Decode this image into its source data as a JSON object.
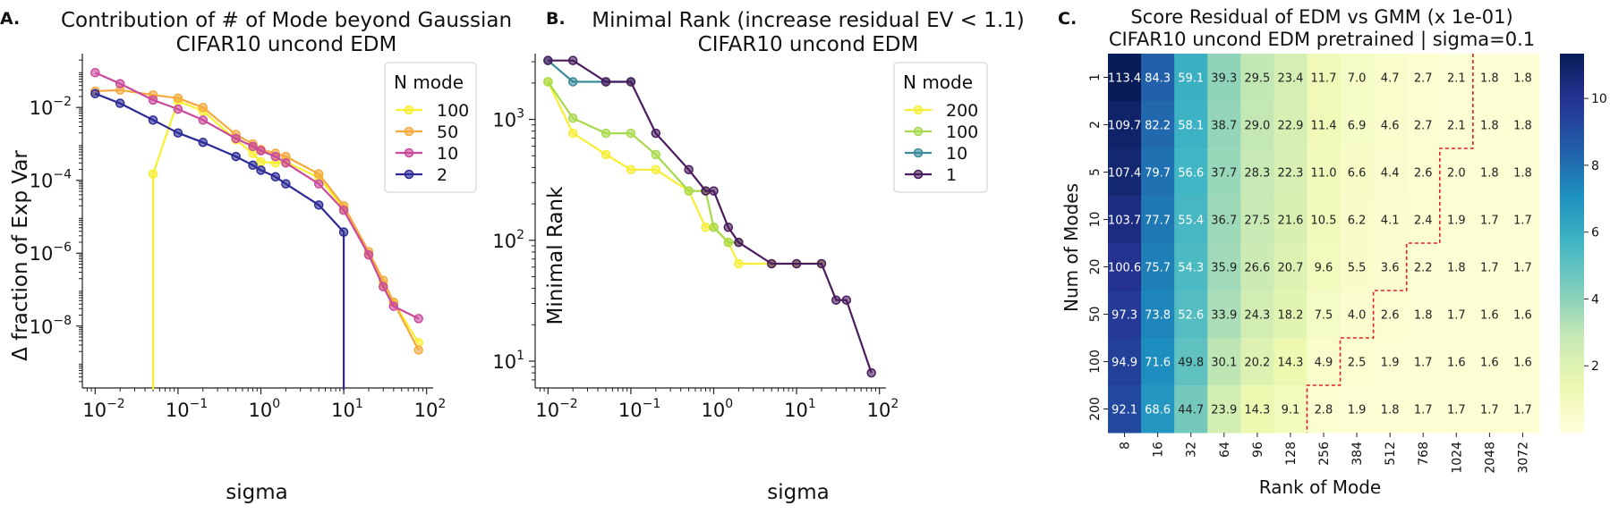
{
  "chart_data": [
    {
      "panel_label": "A.",
      "type": "line",
      "title_lines": [
        "Contribution of # of Mode beyond Gaussian",
        "CIFAR10 uncond EDM"
      ],
      "xlabel": "sigma",
      "ylabel": "Δ fraction of Exp Var",
      "xscale": "log",
      "yscale": "log",
      "xlim": [
        0.007,
        120
      ],
      "ylim": [
        2e-10,
        0.3
      ],
      "xticks": [
        {
          "v": 0.01,
          "base": "10",
          "exp": "−2"
        },
        {
          "v": 0.1,
          "base": "10",
          "exp": "−1"
        },
        {
          "v": 1,
          "base": "10",
          "exp": "0"
        },
        {
          "v": 10,
          "base": "10",
          "exp": "1"
        },
        {
          "v": 100,
          "base": "10",
          "exp": "2"
        }
      ],
      "yticks": [
        {
          "v": 0.01,
          "base": "10",
          "exp": "−2"
        },
        {
          "v": 0.0001,
          "base": "10",
          "exp": "−4"
        },
        {
          "v": 1e-06,
          "base": "10",
          "exp": "−6"
        },
        {
          "v": 1e-08,
          "base": "10",
          "exp": "−8"
        }
      ],
      "legend_title": "N mode",
      "legend_position": "top-right",
      "series": [
        {
          "name": "100",
          "color": "#f7ef2f",
          "x": [
            0.05,
            0.05,
            0.1,
            0.2,
            0.5,
            0.8,
            1,
            1.5,
            2,
            5,
            10,
            20,
            30,
            40,
            80
          ],
          "y": [
            null,
            0.00015,
            0.015,
            0.008,
            0.0013,
            0.00055,
            0.00032,
            0.0003,
            0.00032,
            0.00012,
            1.7e-05,
            9e-07,
            1.4e-07,
            4.5e-08,
            3.5e-09
          ]
        },
        {
          "name": "50",
          "color": "#f5a83c",
          "x": [
            0.01,
            0.02,
            0.05,
            0.1,
            0.2,
            0.5,
            0.8,
            1,
            1.5,
            2,
            5,
            10,
            20,
            30,
            40,
            80
          ],
          "y": [
            0.028,
            0.03,
            0.022,
            0.018,
            0.01,
            0.0018,
            0.001,
            0.0007,
            0.00055,
            0.00045,
            0.00015,
            2e-05,
            1.1e-06,
            1.8e-07,
            4.5e-08,
            2.2e-09
          ]
        },
        {
          "name": "10",
          "color": "#c94a9d",
          "x": [
            0.01,
            0.02,
            0.05,
            0.1,
            0.2,
            0.5,
            0.8,
            1,
            1.5,
            2,
            5,
            10,
            20,
            30,
            40,
            80
          ],
          "y": [
            0.09,
            0.045,
            0.016,
            0.009,
            0.0045,
            0.0014,
            0.00085,
            0.00065,
            0.00045,
            0.0003,
            8e-05,
            1.5e-05,
            9e-07,
            1.2e-07,
            3.5e-08,
            1.6e-08
          ]
        },
        {
          "name": "2",
          "color": "#2b2a96",
          "x": [
            0.01,
            0.02,
            0.05,
            0.1,
            0.2,
            0.5,
            0.8,
            1,
            1.5,
            2,
            5,
            10,
            10
          ],
          "y": [
            0.024,
            0.013,
            0.0045,
            0.002,
            0.0011,
            0.00045,
            0.00026,
            0.00019,
            0.000125,
            8e-05,
            2.1e-05,
            3.8e-06,
            null
          ]
        }
      ]
    },
    {
      "panel_label": "B.",
      "type": "line",
      "title_lines": [
        "Minimal Rank (increase residual EV < 1.1)",
        "CIFAR10 uncond EDM"
      ],
      "xlabel": "sigma",
      "ylabel": "Minimal Rank",
      "xscale": "log",
      "yscale": "log",
      "xlim": [
        0.007,
        120
      ],
      "ylim": [
        6,
        3500
      ],
      "xticks": [
        {
          "v": 0.01,
          "base": "10",
          "exp": "−2"
        },
        {
          "v": 0.1,
          "base": "10",
          "exp": "−1"
        },
        {
          "v": 1,
          "base": "10",
          "exp": "0"
        },
        {
          "v": 10,
          "base": "10",
          "exp": "1"
        },
        {
          "v": 100,
          "base": "10",
          "exp": "2"
        }
      ],
      "yticks": [
        {
          "v": 10,
          "base": "10",
          "exp": "1"
        },
        {
          "v": 100,
          "base": "10",
          "exp": "2"
        },
        {
          "v": 1000,
          "base": "10",
          "exp": "3"
        }
      ],
      "legend_title": "N mode",
      "legend_position": "top-right",
      "series": [
        {
          "name": "200",
          "color": "#f7ee35",
          "x": [
            0.01,
            0.02,
            0.05,
            0.1,
            0.2,
            0.5,
            0.8,
            1,
            1.5,
            2,
            5,
            10,
            20
          ],
          "y": [
            2048,
            768,
            512,
            384,
            384,
            256,
            128,
            128,
            96,
            64,
            64,
            64,
            64
          ]
        },
        {
          "name": "100",
          "color": "#a6d94b",
          "x": [
            0.01,
            0.02,
            0.05,
            0.1,
            0.2,
            0.5,
            0.8,
            1,
            1.5,
            2
          ],
          "y": [
            2048,
            1024,
            768,
            768,
            512,
            256,
            256,
            128,
            96,
            96
          ]
        },
        {
          "name": "10",
          "color": "#3a8a9a",
          "x": [
            0.01,
            0.02,
            0.05,
            0.1
          ],
          "y": [
            3072,
            2048,
            2048,
            2048
          ]
        },
        {
          "name": "1",
          "color": "#4a1c5e",
          "x": [
            0.01,
            0.02,
            0.05,
            0.1,
            0.2,
            0.5,
            0.8,
            1,
            1.5,
            2,
            5,
            10,
            20,
            30,
            40,
            80
          ],
          "y": [
            3072,
            3072,
            2048,
            2048,
            768,
            384,
            256,
            256,
            128,
            96,
            64,
            64,
            64,
            32,
            32,
            8
          ]
        }
      ]
    },
    {
      "panel_label": "C.",
      "type": "heatmap",
      "title_lines": [
        "Score Residual of EDM vs GMM (x 1e-01)",
        "CIFAR10 uncond EDM pretrained | sigma=0.1"
      ],
      "xlabel": "Rank of Mode",
      "ylabel": "Num of Modes",
      "columns": [
        "8",
        "16",
        "32",
        "64",
        "96",
        "128",
        "256",
        "384",
        "512",
        "768",
        "1024",
        "2048",
        "3072"
      ],
      "rows": [
        "1",
        "2",
        "5",
        "10",
        "20",
        "50",
        "100",
        "200"
      ],
      "cells": [
        [
          "113.4",
          "84.3",
          "59.1",
          "39.3",
          "29.5",
          "23.4",
          "11.7",
          "7.0",
          "4.7",
          "2.7",
          "2.1",
          "1.8",
          "1.8"
        ],
        [
          "109.7",
          "82.2",
          "58.1",
          "38.7",
          "29.0",
          "22.9",
          "11.4",
          "6.9",
          "4.6",
          "2.7",
          "2.1",
          "1.8",
          "1.8"
        ],
        [
          "107.4",
          "79.7",
          "56.6",
          "37.7",
          "28.3",
          "22.3",
          "11.0",
          "6.6",
          "4.4",
          "2.6",
          "2.0",
          "1.8",
          "1.8"
        ],
        [
          "103.7",
          "77.7",
          "55.4",
          "36.7",
          "27.5",
          "21.6",
          "10.5",
          "6.2",
          "4.1",
          "2.4",
          "1.9",
          "1.7",
          "1.7"
        ],
        [
          "100.6",
          "75.7",
          "54.3",
          "35.9",
          "26.6",
          "20.7",
          "9.6",
          "5.5",
          "3.6",
          "2.2",
          "1.8",
          "1.7",
          "1.7"
        ],
        [
          "97.3",
          "73.8",
          "52.6",
          "33.9",
          "24.3",
          "18.2",
          "7.5",
          "4.0",
          "2.6",
          "1.8",
          "1.7",
          "1.6",
          "1.6"
        ],
        [
          "94.9",
          "71.6",
          "49.8",
          "30.1",
          "20.2",
          "14.3",
          "4.9",
          "2.5",
          "1.9",
          "1.7",
          "1.6",
          "1.6",
          "1.6"
        ],
        [
          "92.1",
          "68.6",
          "44.7",
          "23.9",
          "14.3",
          "9.1",
          "2.8",
          "1.9",
          "1.8",
          "1.7",
          "1.7",
          "1.7",
          "1.7"
        ]
      ],
      "color_range": [
        0,
        11.34
      ],
      "colorbar_ticks": [
        "2",
        "4",
        "6",
        "8",
        "10"
      ],
      "threshold_boundary_first_col": [
        11,
        11,
        10,
        10,
        9,
        8,
        7,
        6
      ]
    }
  ]
}
